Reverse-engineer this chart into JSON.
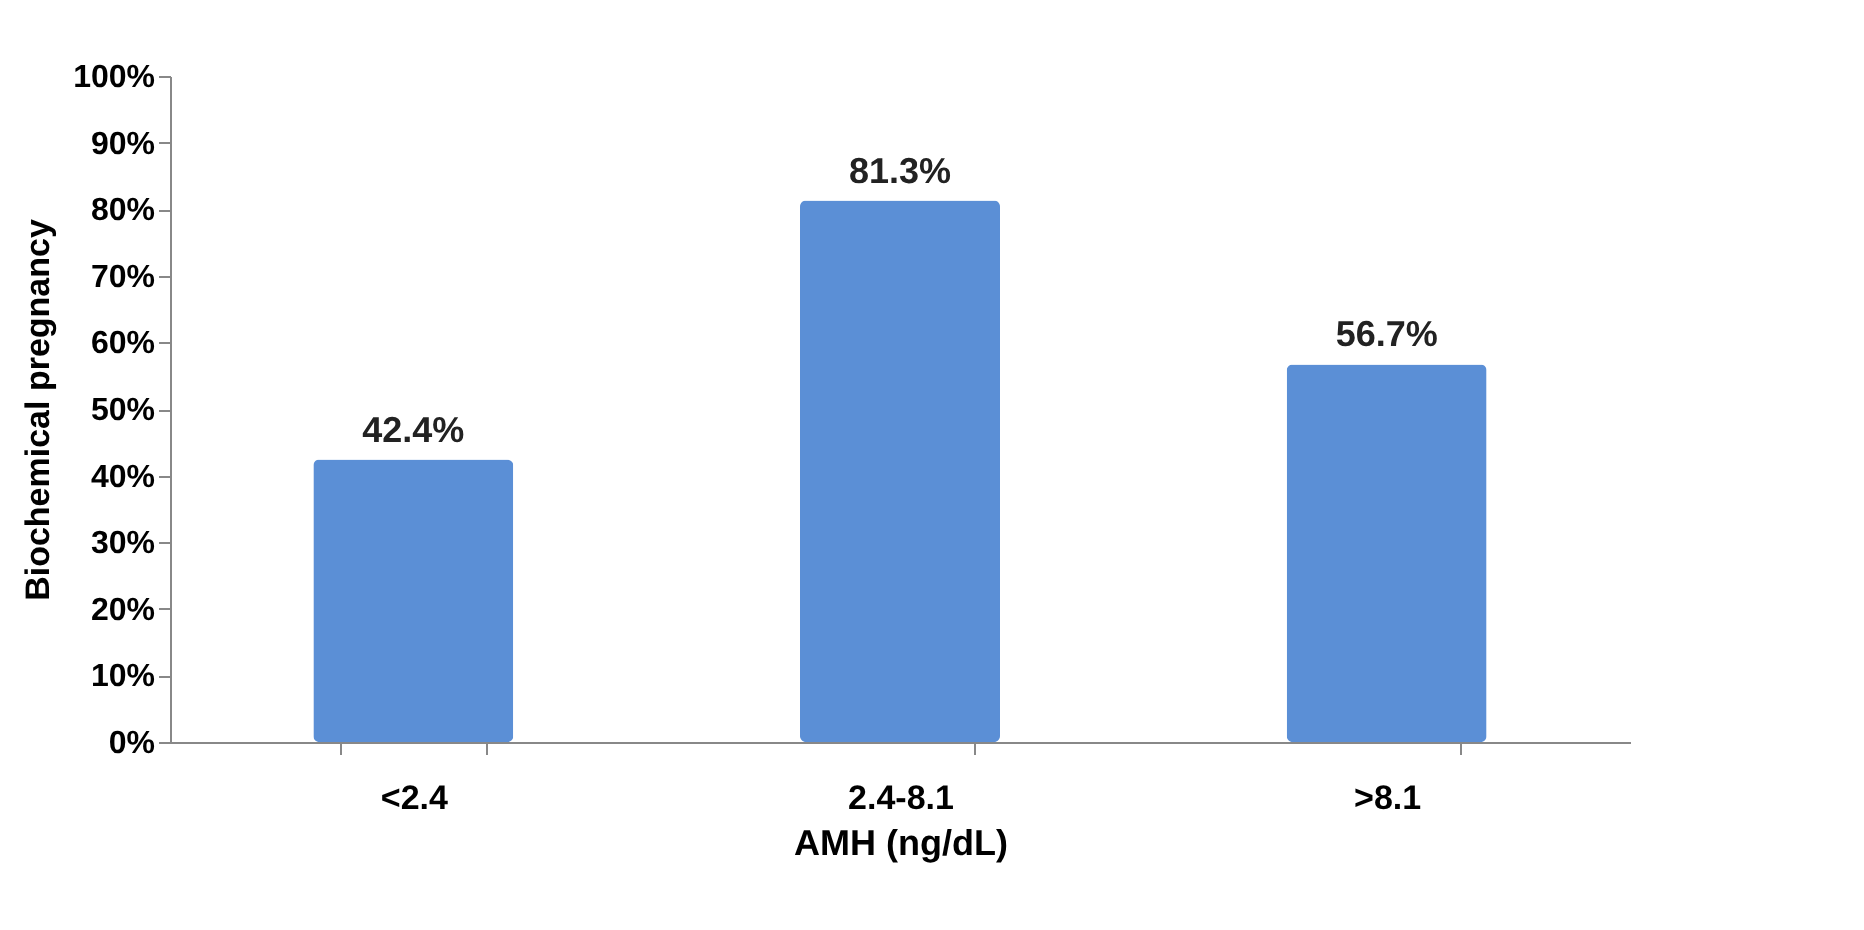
{
  "chart_data": {
    "type": "bar",
    "xlabel": "AMH (ng/dL)",
    "ylabel": "Biochemical pregnancy",
    "categories": [
      "<2.4",
      "2.4-8.1",
      ">8.1"
    ],
    "values": [
      42.4,
      81.3,
      56.7
    ],
    "value_labels": [
      "42.4%",
      "81.3%",
      "56.7%"
    ],
    "color": "#5b8fd6",
    "ylim": [
      0,
      100
    ],
    "yticks": [
      {
        "value": 0,
        "label": "0%"
      },
      {
        "value": 10,
        "label": "10%"
      },
      {
        "value": 20,
        "label": "20%"
      },
      {
        "value": 30,
        "label": "30%"
      },
      {
        "value": 40,
        "label": "40%"
      },
      {
        "value": 50,
        "label": "50%"
      },
      {
        "value": 60,
        "label": "60%"
      },
      {
        "value": 70,
        "label": "70%"
      },
      {
        "value": 80,
        "label": "80%"
      },
      {
        "value": 90,
        "label": "90%"
      },
      {
        "value": 100,
        "label": "100%"
      }
    ],
    "grid": false
  }
}
